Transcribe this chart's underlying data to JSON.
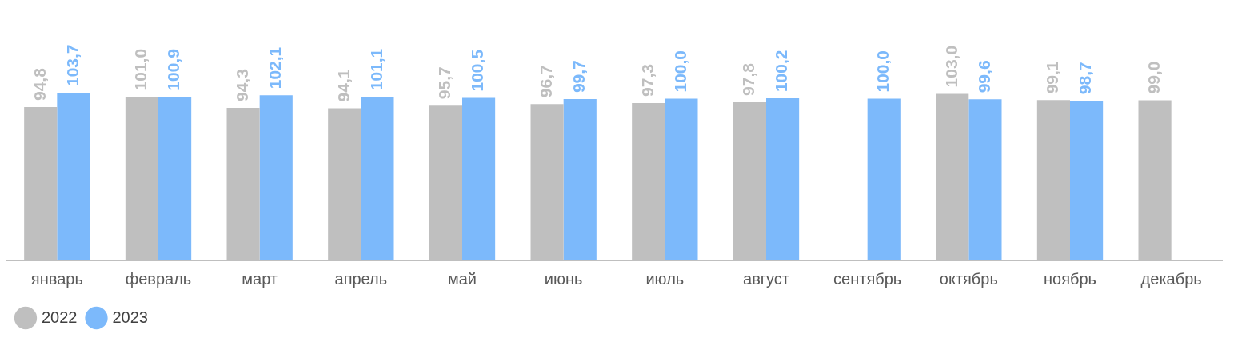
{
  "chart_data": {
    "type": "bar",
    "categories": [
      "январь",
      "февраль",
      "март",
      "апрель",
      "май",
      "июнь",
      "июль",
      "август",
      "сентябрь",
      "октябрь",
      "ноябрь",
      "декабрь"
    ],
    "series": [
      {
        "name": "2022",
        "color": "#bfbfbf",
        "values": [
          94.8,
          101.0,
          94.3,
          94.1,
          95.7,
          96.7,
          97.3,
          97.8,
          null,
          103.0,
          99.1,
          99.0
        ],
        "value_labels": [
          "94,8",
          "101,0",
          "94,3",
          "94,1",
          "95,7",
          "96,7",
          "97,3",
          "97,8",
          null,
          "103,0",
          "99,1",
          "99,0"
        ]
      },
      {
        "name": "2023",
        "color": "#7cb9fb",
        "values": [
          103.7,
          100.9,
          102.1,
          101.1,
          100.5,
          99.7,
          100.0,
          100.2,
          100.0,
          99.6,
          98.7,
          null
        ],
        "value_labels": [
          "103,7",
          "100,9",
          "102,1",
          "101,1",
          "100,5",
          "99,7",
          "100,0",
          "100,2",
          "100,0",
          "99,6",
          "98,7",
          null
        ]
      }
    ],
    "tick_labels": "x",
    "grid": false,
    "legend": "bottom left"
  }
}
